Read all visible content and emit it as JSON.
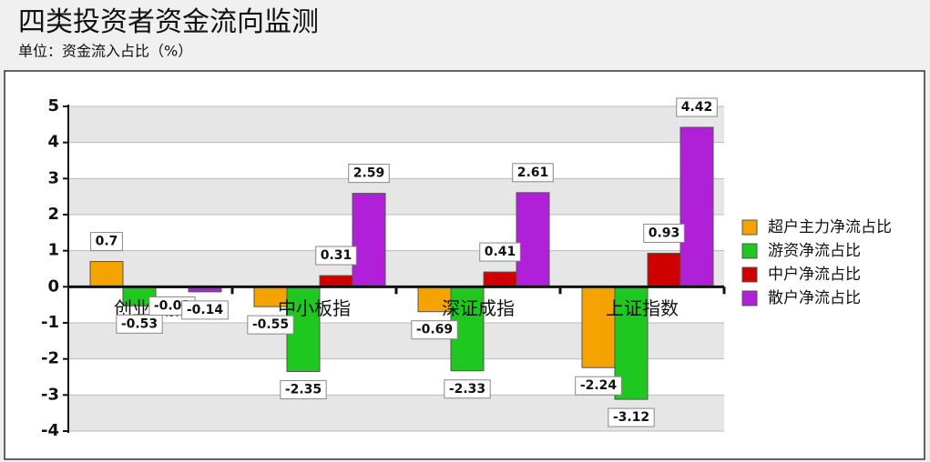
{
  "chart_data": {
    "type": "bar",
    "title": "四类投资者资金流向监测",
    "subtitle": "单位：资金流入占比（%）",
    "categories": [
      "创业板指",
      "中小板指",
      "深证成指",
      "上证指数"
    ],
    "series": [
      {
        "name": "超户主力净流占比",
        "color": "#f5a300",
        "values": [
          0.7,
          -0.55,
          -0.69,
          -2.24
        ]
      },
      {
        "name": "游资净流占比",
        "color": "#1ec81e",
        "values": [
          -0.53,
          -2.35,
          -2.33,
          -3.12
        ]
      },
      {
        "name": "中户净流占比",
        "color": "#d00000",
        "values": [
          -0.03,
          0.31,
          0.41,
          0.93
        ]
      },
      {
        "name": "散户净流占比",
        "color": "#b020d8",
        "values": [
          -0.14,
          2.59,
          2.61,
          4.42
        ]
      }
    ],
    "ylim": [
      -4,
      5
    ],
    "yticks": [
      -4,
      -3,
      -2,
      -1,
      0,
      1,
      2,
      3,
      4,
      5
    ],
    "grid": true,
    "legend": "right"
  }
}
